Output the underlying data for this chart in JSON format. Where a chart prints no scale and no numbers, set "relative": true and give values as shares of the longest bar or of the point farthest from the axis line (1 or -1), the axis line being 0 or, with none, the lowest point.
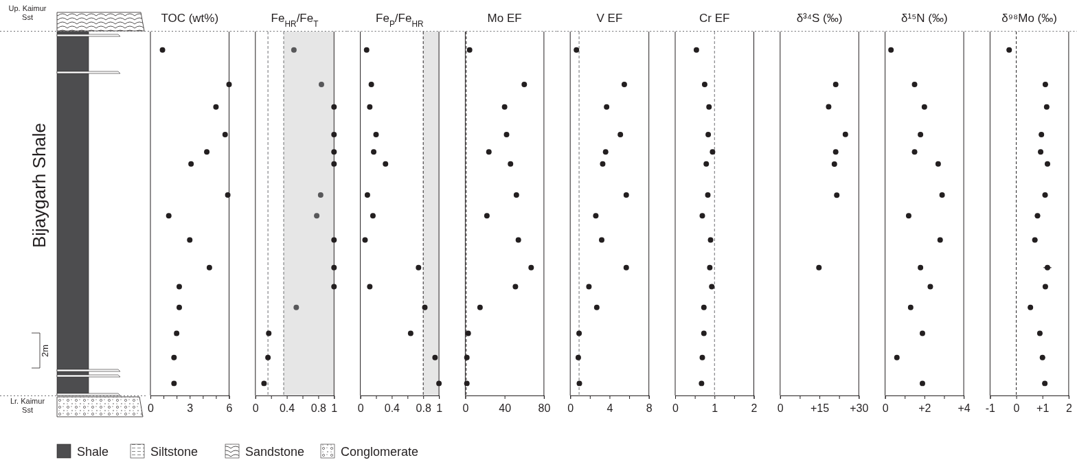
{
  "chart_data": [
    {
      "type": "other",
      "annotations": [
        "Up. Kaimur Sst",
        "Bijaygarh Shale",
        "Lr. Kaimur Sst",
        "2m",
        "Shale",
        "Siltstone",
        "Sandstone",
        "Conglomerate"
      ]
    },
    {
      "type": "scatter",
      "title": "TOC (wt%)",
      "xlim": [
        0,
        6
      ],
      "xticks": [
        0,
        {
          "value": 1,
          "label": null
        },
        {
          "value": 2,
          "label": null
        },
        3,
        {
          "value": 4,
          "label": null
        },
        {
          "value": 5,
          "label": null
        },
        6
      ],
      "relative": true,
      "tick_labels": "x",
      "marker": "circle",
      "series": [
        {
          "color": "#231f20",
          "x": [
            0.92,
            6.0,
            5.0,
            5.7,
            4.3,
            3.1,
            5.9,
            1.4,
            3.0,
            4.5,
            2.2,
            2.2,
            2.0,
            1.8,
            1.8
          ],
          "values": [
            1,
            0.9,
            0.835,
            0.755,
            0.705,
            0.67,
            0.58,
            0.52,
            0.45,
            0.37,
            0.315,
            0.255,
            0.18,
            0.11,
            0.035
          ]
        }
      ]
    },
    {
      "type": "scatter",
      "title": "Fe$_{HR}$/Fe$_{T}$",
      "xlim": [
        0,
        1
      ],
      "xticks": [
        0,
        {
          "value": 0.2,
          "label": null
        },
        0.4,
        {
          "value": 0.6,
          "label": null
        },
        0.8,
        1
      ],
      "relative": true,
      "tick_labels": "x",
      "marker": "circle",
      "bands": [
        {
          "axis": "x",
          "from": 0.36,
          "to": 1,
          "color": "#e6e6e6"
        }
      ],
      "ref_lines": [
        {
          "axis": "x",
          "value": 0.16,
          "line_style": "dashed",
          "color": "#6d6e71"
        },
        {
          "axis": "x",
          "value": 0.36,
          "line_style": "dashed",
          "color": "#6d6e71"
        }
      ],
      "series": [
        {
          "x": [
            0.49,
            0.84,
            1.0,
            1.0,
            1.0,
            1.0,
            0.83,
            0.78,
            1.0,
            1.0,
            1.0,
            0.52,
            0.17,
            0.16,
            0.11
          ],
          "values": [
            1,
            0.9,
            0.835,
            0.755,
            0.705,
            0.67,
            0.58,
            0.52,
            0.45,
            0.37,
            0.315,
            0.255,
            0.18,
            0.11,
            0.035
          ],
          "colors": [
            "#58585a",
            "#58585a",
            "#231f20",
            "#231f20",
            "#231f20",
            "#231f20",
            "#58585a",
            "#58585a",
            "#231f20",
            "#231f20",
            "#231f20",
            "#58585a",
            "#231f20",
            "#231f20",
            "#231f20"
          ]
        }
      ]
    },
    {
      "type": "scatter",
      "title": "Fe$_{P}$/Fe$_{HR}$",
      "xlim": [
        0,
        1
      ],
      "xticks": [
        0,
        {
          "value": 0.2,
          "label": null
        },
        0.4,
        {
          "value": 0.6,
          "label": null
        },
        0.8,
        1
      ],
      "relative": true,
      "tick_labels": "x",
      "marker": "circle",
      "bands": [
        {
          "axis": "x",
          "from": 0.8,
          "to": 1,
          "color": "#e6e6e6"
        }
      ],
      "ref_lines": [
        {
          "axis": "x",
          "value": 0.8,
          "line_style": "dashed",
          "color": "#231f20"
        }
      ],
      "series": [
        {
          "color": "#231f20",
          "x": [
            0.08,
            0.14,
            0.12,
            0.2,
            0.17,
            0.32,
            0.09,
            0.16,
            0.06,
            0.74,
            0.12,
            0.82,
            0.64,
            0.95,
            1.0
          ],
          "values": [
            1,
            0.9,
            0.835,
            0.755,
            0.705,
            0.67,
            0.58,
            0.52,
            0.45,
            0.37,
            0.315,
            0.255,
            0.18,
            0.11,
            0.035
          ]
        }
      ]
    },
    {
      "type": "scatter",
      "title": "Mo EF",
      "xlim": [
        0,
        80
      ],
      "xticks": [
        0,
        40,
        80
      ],
      "relative": true,
      "tick_labels": "x",
      "marker": "circle",
      "ref_lines": [
        {
          "axis": "x",
          "value": 1,
          "line_style": "dashed",
          "color": "#231f20"
        }
      ],
      "series": [
        {
          "color": "#231f20",
          "x": [
            4.4,
            60,
            40,
            42,
            24,
            46,
            52,
            22,
            54,
            67,
            51,
            15,
            3.0,
            1.6,
            1.6
          ],
          "values": [
            1,
            0.9,
            0.835,
            0.755,
            0.705,
            0.67,
            0.58,
            0.52,
            0.45,
            0.37,
            0.315,
            0.255,
            0.18,
            0.11,
            0.035
          ]
        }
      ]
    },
    {
      "type": "scatter",
      "title": "V EF",
      "xlim": [
        0,
        8
      ],
      "xticks": [
        0,
        {
          "value": 2,
          "label": null
        },
        4,
        {
          "value": 6,
          "label": null
        },
        8
      ],
      "relative": true,
      "tick_labels": "x",
      "marker": "circle",
      "ref_lines": [
        {
          "axis": "x",
          "value": 0.9,
          "line_style": "dashed",
          "color": "#6d6e71"
        }
      ],
      "series": [
        {
          "color": "#231f20",
          "x": [
            0.63,
            5.5,
            3.7,
            5.1,
            3.6,
            3.3,
            5.7,
            2.6,
            3.2,
            5.7,
            1.9,
            2.7,
            0.9,
            0.82,
            0.93
          ],
          "values": [
            1,
            0.9,
            0.835,
            0.755,
            0.705,
            0.67,
            0.58,
            0.52,
            0.45,
            0.37,
            0.315,
            0.255,
            0.18,
            0.11,
            0.035
          ]
        }
      ]
    },
    {
      "type": "scatter",
      "title": "Cr EF",
      "xlim": [
        0,
        2
      ],
      "xticks": [
        0,
        {
          "value": 0.5,
          "label": null
        },
        1,
        {
          "value": 1.5,
          "label": null
        },
        2
      ],
      "relative": true,
      "tick_labels": "x",
      "marker": "circle",
      "ref_lines": [
        {
          "axis": "x",
          "value": 1,
          "line_style": "dashed",
          "color": "#6d6e71"
        }
      ],
      "series": [
        {
          "color": "#231f20",
          "x": [
            0.54,
            0.75,
            0.86,
            0.84,
            0.95,
            0.79,
            0.83,
            0.69,
            0.9,
            0.88,
            0.93,
            0.73,
            0.73,
            0.69,
            0.67
          ],
          "values": [
            1,
            0.9,
            0.835,
            0.755,
            0.705,
            0.67,
            0.58,
            0.52,
            0.45,
            0.37,
            0.315,
            0.255,
            0.18,
            0.11,
            0.035
          ]
        }
      ]
    },
    {
      "type": "scatter",
      "title": "δ³⁴S (‰)",
      "xlim": [
        0,
        30
      ],
      "xticks": [
        0,
        {
          "value": 7.5,
          "label": null
        },
        {
          "value": 15,
          "label": "+15"
        },
        {
          "value": 22.5,
          "label": null
        },
        {
          "value": 30,
          "label": "+30"
        }
      ],
      "relative": true,
      "tick_labels": "x",
      "marker": "circle",
      "series": [
        {
          "color": "#231f20",
          "x": [
            21.2,
            18.5,
            24.9,
            21.2,
            20.7,
            21.6,
            14.8
          ],
          "values": [
            1,
            0.928,
            0.839,
            0.783,
            0.744,
            0.644,
            0.411
          ]
        }
      ]
    },
    {
      "type": "scatter",
      "title": "δ¹⁵N (‰)",
      "xlim": [
        0,
        4
      ],
      "xticks": [
        0,
        {
          "value": 1,
          "label": null
        },
        {
          "value": 2,
          "label": "+2"
        },
        {
          "value": 3,
          "label": null
        },
        {
          "value": 4,
          "label": "+4"
        }
      ],
      "relative": true,
      "tick_labels": "x",
      "marker": "circle",
      "series": [
        {
          "color": "#231f20",
          "x": [
            0.3,
            1.5,
            2.0,
            1.8,
            1.5,
            2.7,
            2.9,
            1.2,
            2.8,
            1.8,
            2.3,
            1.3,
            1.9,
            0.6,
            1.9
          ],
          "values": [
            1,
            0.9,
            0.835,
            0.755,
            0.705,
            0.67,
            0.58,
            0.52,
            0.45,
            0.37,
            0.315,
            0.255,
            0.18,
            0.11,
            0.035
          ]
        }
      ]
    },
    {
      "type": "scatter",
      "title": "δ⁹⁸Mo (‰)",
      "xlim": [
        -1,
        2
      ],
      "xticks": [
        -1,
        0,
        {
          "value": 1,
          "label": "+1"
        },
        2
      ],
      "relative": true,
      "tick_labels": "x",
      "marker": "circle",
      "ref_lines": [
        {
          "axis": "x",
          "value": 0,
          "line_style": "dashed",
          "color": "#231f20"
        }
      ],
      "series": [
        {
          "color": "#231f20",
          "x": [
            -0.27,
            1.11,
            1.16,
            0.96,
            0.93,
            1.19,
            1.1,
            0.81,
            0.71,
            1.19,
            1.11,
            0.54,
            0.9,
            1.0,
            1.09
          ],
          "values": [
            1,
            0.9,
            0.835,
            0.755,
            0.705,
            0.67,
            0.58,
            0.52,
            0.45,
            0.37,
            0.315,
            0.255,
            0.18,
            0.11,
            0.035
          ],
          "xerrors": [
            0.1,
            0.1,
            0.1,
            0.1,
            0.1,
            0.1,
            0.1,
            0.1,
            0.1,
            0.15,
            0.1,
            0.1,
            0.1,
            0.1,
            0.1
          ]
        }
      ]
    }
  ]
}
